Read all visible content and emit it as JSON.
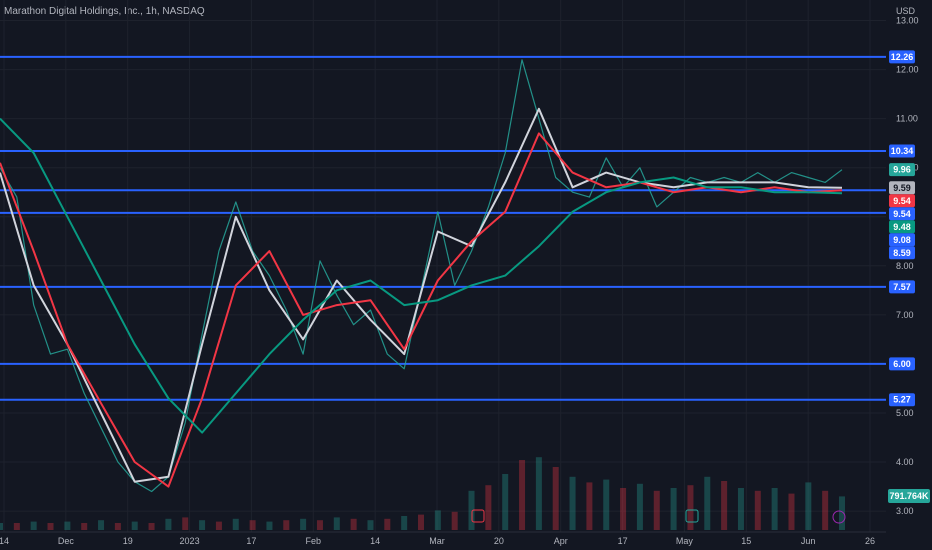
{
  "header": {
    "title": "Marathon Digital Holdings, Inc., 1h, NASDAQ"
  },
  "chart_data": {
    "type": "line",
    "title": "Marathon Digital Holdings, Inc., 1h, NASDAQ",
    "currency": "USD",
    "ylim": [
      2.9,
      13.5
    ],
    "y_ticks": [
      3.0,
      4.0,
      5.0,
      6.0,
      7.0,
      8.0,
      9.0,
      10.0,
      11.0,
      12.0,
      13.0
    ],
    "x_tick_labels": [
      "14",
      "Dec",
      "19",
      "2023",
      "17",
      "Feb",
      "14",
      "Mar",
      "20",
      "Apr",
      "17",
      "May",
      "15",
      "Jun",
      "26"
    ],
    "horizontal_levels": [
      12.26,
      10.34,
      9.54,
      9.08,
      7.57,
      6.0,
      5.27
    ],
    "price_badges": [
      {
        "label": "12.26",
        "value": 12.26,
        "color": "#2962ff"
      },
      {
        "label": "10.34",
        "value": 10.34,
        "color": "#2962ff"
      },
      {
        "label": "9.96",
        "value": 9.96,
        "color": "#26a69a"
      },
      {
        "label": "9.59",
        "value": 9.59,
        "color": "#b2b5be"
      },
      {
        "label": "9.54",
        "value": 9.54,
        "color": "#f23645"
      },
      {
        "label": "9.54",
        "value": 9.54,
        "color": "#2962ff"
      },
      {
        "label": "9.48",
        "value": 9.48,
        "color": "#089981"
      },
      {
        "label": "9.08",
        "value": 9.08,
        "color": "#2962ff"
      },
      {
        "label": "8.59",
        "value": 8.59,
        "color": "#2962ff"
      },
      {
        "label": "7.57",
        "value": 7.57,
        "color": "#2962ff"
      },
      {
        "label": "6.00",
        "value": 6.0,
        "color": "#2962ff"
      },
      {
        "label": "5.27",
        "value": 5.27,
        "color": "#2962ff"
      }
    ],
    "volume_badge": "791.764K",
    "series": [
      {
        "key": "price",
        "color": "#26a69a",
        "x": [
          0,
          2,
          4,
          6,
          8,
          10,
          12,
          14,
          16,
          18,
          20,
          22,
          24,
          26,
          28,
          30,
          32,
          34,
          36,
          38,
          40,
          42,
          44,
          46,
          48,
          50,
          52,
          54,
          56,
          58,
          60,
          62,
          64,
          66,
          68,
          70,
          72,
          74,
          76,
          78,
          80,
          82,
          84,
          86,
          88,
          90,
          92,
          94,
          96,
          98,
          100
        ],
        "values": [
          10.0,
          9.4,
          7.2,
          6.2,
          6.3,
          5.4,
          4.7,
          4.0,
          3.6,
          3.4,
          3.7,
          4.8,
          6.6,
          8.3,
          9.3,
          8.3,
          7.8,
          7.1,
          6.2,
          8.1,
          7.4,
          6.8,
          7.1,
          6.2,
          5.9,
          7.5,
          9.1,
          7.6,
          8.3,
          9.2,
          10.3,
          12.2,
          11.0,
          9.8,
          9.5,
          9.4,
          10.2,
          9.6,
          10.0,
          9.2,
          9.5,
          9.8,
          9.7,
          9.8,
          9.7,
          9.9,
          9.7,
          9.9,
          9.8,
          9.7,
          9.96
        ]
      },
      {
        "key": "ma_fast",
        "color": "#d1d4dc",
        "x": [
          0,
          4,
          8,
          12,
          16,
          20,
          24,
          28,
          32,
          36,
          40,
          44,
          48,
          52,
          56,
          60,
          64,
          68,
          72,
          76,
          80,
          84,
          88,
          92,
          96,
          100
        ],
        "values": [
          9.9,
          7.6,
          6.4,
          5.0,
          3.6,
          3.7,
          6.4,
          9.0,
          7.5,
          6.5,
          7.7,
          6.9,
          6.2,
          8.7,
          8.4,
          9.7,
          11.2,
          9.6,
          9.9,
          9.7,
          9.6,
          9.7,
          9.7,
          9.7,
          9.6,
          9.59
        ]
      },
      {
        "key": "ma_mid",
        "color": "#f23645",
        "x": [
          0,
          4,
          8,
          12,
          16,
          20,
          24,
          28,
          32,
          36,
          40,
          44,
          48,
          52,
          56,
          60,
          64,
          68,
          72,
          76,
          80,
          84,
          88,
          92,
          96,
          100
        ],
        "values": [
          10.1,
          8.3,
          6.4,
          5.2,
          4.0,
          3.5,
          5.3,
          7.6,
          8.3,
          7.0,
          7.2,
          7.3,
          6.3,
          7.7,
          8.5,
          9.1,
          10.7,
          9.9,
          9.6,
          9.7,
          9.5,
          9.6,
          9.5,
          9.6,
          9.5,
          9.54
        ]
      },
      {
        "key": "ma_slow",
        "color": "#089981",
        "x": [
          0,
          4,
          8,
          12,
          16,
          20,
          24,
          28,
          32,
          36,
          40,
          44,
          48,
          52,
          56,
          60,
          64,
          68,
          72,
          76,
          80,
          84,
          88,
          92,
          96,
          100
        ],
        "values": [
          11.0,
          10.3,
          9.0,
          7.7,
          6.4,
          5.3,
          4.6,
          5.4,
          6.2,
          6.9,
          7.5,
          7.7,
          7.2,
          7.3,
          7.6,
          7.8,
          8.4,
          9.1,
          9.5,
          9.7,
          9.8,
          9.6,
          9.6,
          9.5,
          9.5,
          9.48
        ]
      }
    ],
    "volume": [
      0.05,
      0.05,
      0.06,
      0.05,
      0.06,
      0.05,
      0.07,
      0.05,
      0.06,
      0.05,
      0.08,
      0.09,
      0.07,
      0.06,
      0.08,
      0.07,
      0.06,
      0.07,
      0.08,
      0.07,
      0.09,
      0.08,
      0.07,
      0.08,
      0.1,
      0.11,
      0.14,
      0.13,
      0.28,
      0.32,
      0.4,
      0.5,
      0.52,
      0.45,
      0.38,
      0.34,
      0.36,
      0.3,
      0.33,
      0.28,
      0.3,
      0.32,
      0.38,
      0.35,
      0.3,
      0.28,
      0.3,
      0.26,
      0.34,
      0.28,
      0.24
    ]
  }
}
